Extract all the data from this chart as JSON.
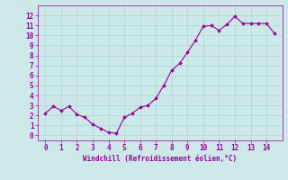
{
  "x": [
    0,
    0.5,
    1,
    1.5,
    2,
    2.5,
    3,
    3.5,
    4,
    4.5,
    5,
    5.5,
    6,
    6.5,
    7,
    7.5,
    8,
    8.5,
    9,
    9.5,
    10,
    10.5,
    11,
    11.5,
    12,
    12.5,
    13,
    13.5,
    14,
    14.5
  ],
  "y": [
    2.2,
    2.9,
    2.5,
    2.9,
    2.1,
    1.8,
    1.1,
    0.7,
    0.3,
    0.2,
    1.8,
    2.2,
    2.8,
    3.0,
    3.7,
    5.0,
    6.5,
    7.2,
    8.3,
    9.5,
    10.9,
    11.0,
    10.5,
    11.1,
    11.9,
    11.2,
    11.2,
    11.2,
    11.2,
    10.2
  ],
  "line_color": "#990099",
  "marker_color": "#990099",
  "bg_color": "#cce8e8",
  "grid_color": "#b0d8d8",
  "xlabel": "Windchill (Refroidissement éolien,°C)",
  "xlabel_color": "#990099",
  "tick_color": "#990099",
  "xlim": [
    -0.5,
    15.0
  ],
  "ylim": [
    -0.5,
    13.0
  ],
  "xticks": [
    0,
    1,
    2,
    3,
    4,
    5,
    6,
    7,
    8,
    9,
    10,
    11,
    12,
    13,
    14
  ],
  "yticks": [
    0,
    1,
    2,
    3,
    4,
    5,
    6,
    7,
    8,
    9,
    10,
    11,
    12
  ]
}
